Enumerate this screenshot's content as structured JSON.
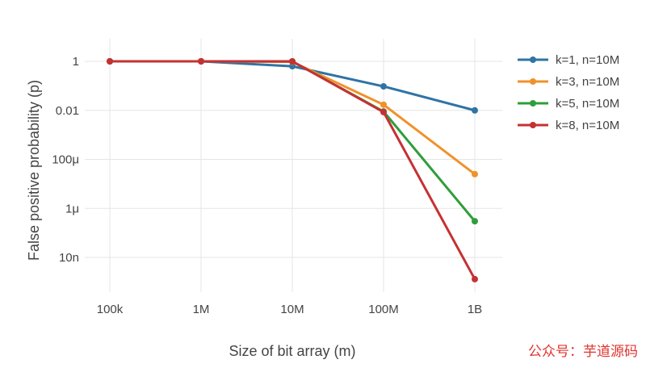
{
  "chart_data": {
    "type": "line",
    "xlabel": "Size of bit array (m)",
    "ylabel": "False positive probability (p)",
    "x": [
      "100k",
      "1M",
      "10M",
      "100M",
      "1B"
    ],
    "x_values": [
      100000,
      1000000,
      10000000,
      100000000,
      1000000000
    ],
    "y_scale": "log",
    "y_ticks": [
      {
        "value": 1,
        "label": "1"
      },
      {
        "value": 0.01,
        "label": "0.01"
      },
      {
        "value": 0.0001,
        "label": "100μ"
      },
      {
        "value": 1e-06,
        "label": "1μ"
      },
      {
        "value": 1e-08,
        "label": "10n"
      }
    ],
    "ylim": [
      5e-10,
      5
    ],
    "grid": true,
    "legend_position": "right",
    "series": [
      {
        "name": "k=1, n=10M",
        "color": "#2f74a5",
        "values": [
          1,
          1,
          0.63,
          0.095,
          0.01
        ]
      },
      {
        "name": "k=3, n=10M",
        "color": "#f0922b",
        "values": [
          1,
          1,
          0.95,
          0.017,
          2.5e-05
        ]
      },
      {
        "name": "k=5, n=10M",
        "color": "#2f9e3a",
        "values": [
          1,
          1,
          0.99,
          0.009,
          3e-07
        ]
      },
      {
        "name": "k=8, n=10M",
        "color": "#c53133",
        "values": [
          1,
          1,
          1,
          0.0085,
          1.3e-09
        ]
      }
    ]
  },
  "watermark": "公众号：芋道源码"
}
